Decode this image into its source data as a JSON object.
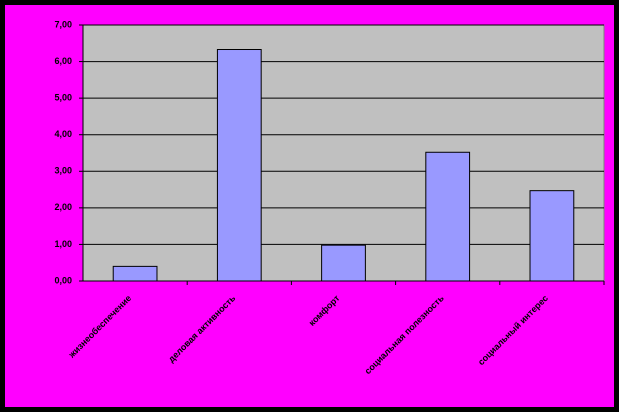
{
  "chart_data": {
    "type": "bar",
    "categories": [
      "жизнеобеспечение",
      "деловая активность",
      "комфорт",
      "социальная полезность",
      "социальный интерес"
    ],
    "values": [
      0.4,
      6.33,
      0.98,
      3.52,
      2.47
    ],
    "color": "#9999ff",
    "ylim": [
      0,
      7
    ],
    "yticks": [
      {
        "value": 0,
        "label": "0,00"
      },
      {
        "value": 1,
        "label": "1,00"
      },
      {
        "value": 2,
        "label": "2,00"
      },
      {
        "value": 3,
        "label": "3,00"
      },
      {
        "value": 4,
        "label": "4,00"
      },
      {
        "value": 5,
        "label": "5,00"
      },
      {
        "value": 6,
        "label": "6,00"
      },
      {
        "value": 7,
        "label": "7,00"
      }
    ],
    "grid": true
  }
}
